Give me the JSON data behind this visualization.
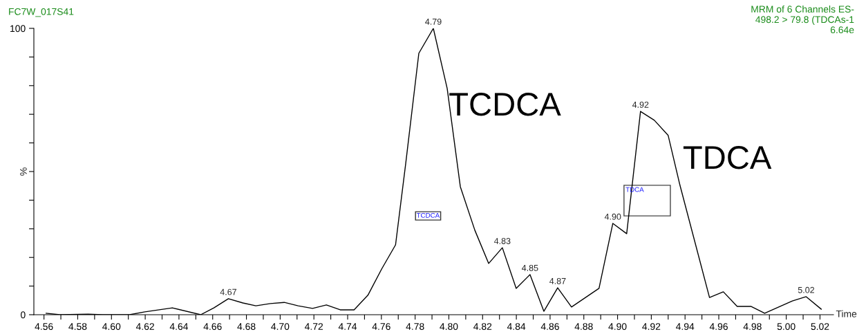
{
  "chart_data": {
    "type": "line",
    "title": "FC7W_017S41",
    "subtitle": "MRM of 6 Channels ES-\n498.2 > 79.8 (TDCAs-1\n6.64e",
    "xlabel": "Time",
    "ylabel": "%",
    "x": [
      4.5612,
      4.5694,
      4.5862,
      4.5948,
      4.6107,
      4.6198,
      4.6361,
      4.6529,
      4.6607,
      4.6693,
      4.6779,
      4.6856,
      4.6942,
      4.7024,
      4.7106,
      4.7192,
      4.7274,
      4.7356,
      4.7438,
      4.752,
      4.7602,
      4.7684,
      4.7744,
      4.7822,
      4.7908,
      4.799,
      4.8068,
      4.8154,
      4.8236,
      4.8317,
      4.8399,
      4.8481,
      4.8563,
      4.8645,
      4.8727,
      4.889,
      4.8972,
      4.9054,
      4.9136,
      4.9218,
      4.93,
      4.9369,
      4.9545,
      4.9627,
      4.9709,
      4.979,
      4.9872,
      5.0036,
      5.0118,
      5.0208
    ],
    "series": [
      {
        "color": "#000000",
        "values": [
          0.5,
          0,
          0.2,
          0,
          0,
          1.0,
          2.4,
          0,
          2.4,
          5.6,
          4.1,
          3.1,
          3.9,
          4.3,
          3.1,
          2.2,
          3.4,
          1.7,
          1.7,
          6.8,
          16,
          24.4,
          52.7,
          91.3,
          100,
          79,
          44.7,
          29.5,
          17.9,
          23.4,
          9.2,
          14,
          1.2,
          9.4,
          2.7,
          9.2,
          31.9,
          28.3,
          71,
          67.9,
          62.6,
          45.4,
          6.0,
          8.0,
          2.9,
          2.9,
          0.5,
          4.8,
          6.3,
          1.9
        ]
      }
    ],
    "xlim": [
      4.554,
      5.028
    ],
    "ylim": [
      0,
      100
    ],
    "xticks": [
      4.56,
      {
        "value": 4.57,
        "label": null
      },
      4.58,
      {
        "value": 4.59,
        "label": null
      },
      {
        "value": 4.6,
        "label": "4.60"
      },
      {
        "value": 4.61,
        "label": null
      },
      4.62,
      {
        "value": 4.63,
        "label": null
      },
      4.64,
      {
        "value": 4.65,
        "label": null
      },
      4.66,
      {
        "value": 4.67,
        "label": null
      },
      4.68,
      {
        "value": 4.69,
        "label": null
      },
      {
        "value": 4.7,
        "label": "4.70"
      },
      {
        "value": 4.71,
        "label": null
      },
      4.72,
      {
        "value": 4.73,
        "label": null
      },
      4.74,
      {
        "value": 4.75,
        "label": null
      },
      4.76,
      {
        "value": 4.77,
        "label": null
      },
      4.78,
      {
        "value": 4.79,
        "label": null
      },
      {
        "value": 4.8,
        "label": "4.80"
      },
      {
        "value": 4.81,
        "label": null
      },
      4.82,
      {
        "value": 4.83,
        "label": null
      },
      4.84,
      {
        "value": 4.85,
        "label": null
      },
      4.86,
      {
        "value": 4.87,
        "label": null
      },
      4.88,
      {
        "value": 4.89,
        "label": null
      },
      {
        "value": 4.9,
        "label": "4.90"
      },
      {
        "value": 4.91,
        "label": null
      },
      4.92,
      {
        "value": 4.93,
        "label": null
      },
      4.94,
      {
        "value": 4.95,
        "label": null
      },
      4.96,
      {
        "value": 4.97,
        "label": null
      },
      4.98,
      {
        "value": 4.99,
        "label": null
      },
      {
        "value": 5.0,
        "label": "5.00"
      },
      {
        "value": 5.01,
        "label": null
      },
      5.02
    ],
    "yticks": [
      0,
      {
        "value": 10,
        "label": null
      },
      {
        "value": 20,
        "label": null
      },
      {
        "value": 30,
        "label": null
      },
      {
        "value": 40,
        "label": null
      },
      {
        "value": 50,
        "label": null
      },
      {
        "value": 60,
        "label": null
      },
      {
        "value": 70,
        "label": null
      },
      {
        "value": 80,
        "label": null
      },
      {
        "value": 90,
        "label": null
      },
      100
    ],
    "annotations": [
      {
        "text": "4.67",
        "x": 4.6693,
        "y": 5.6
      },
      {
        "text": "4.79",
        "x": 4.7908,
        "y": 100
      },
      {
        "text": "4.83",
        "x": 4.8317,
        "y": 23.4
      },
      {
        "text": "4.85",
        "x": 4.8481,
        "y": 14
      },
      {
        "text": "4.87",
        "x": 4.8645,
        "y": 9.4
      },
      {
        "text": "4.90",
        "x": 4.8972,
        "y": 31.9
      },
      {
        "text": "4.92",
        "x": 4.9136,
        "y": 71
      },
      {
        "text": "5.02",
        "x": 5.0118,
        "y": 6.3
      },
      "TCDCA",
      "TDCA",
      "TCDCA",
      "TDCA"
    ]
  }
}
